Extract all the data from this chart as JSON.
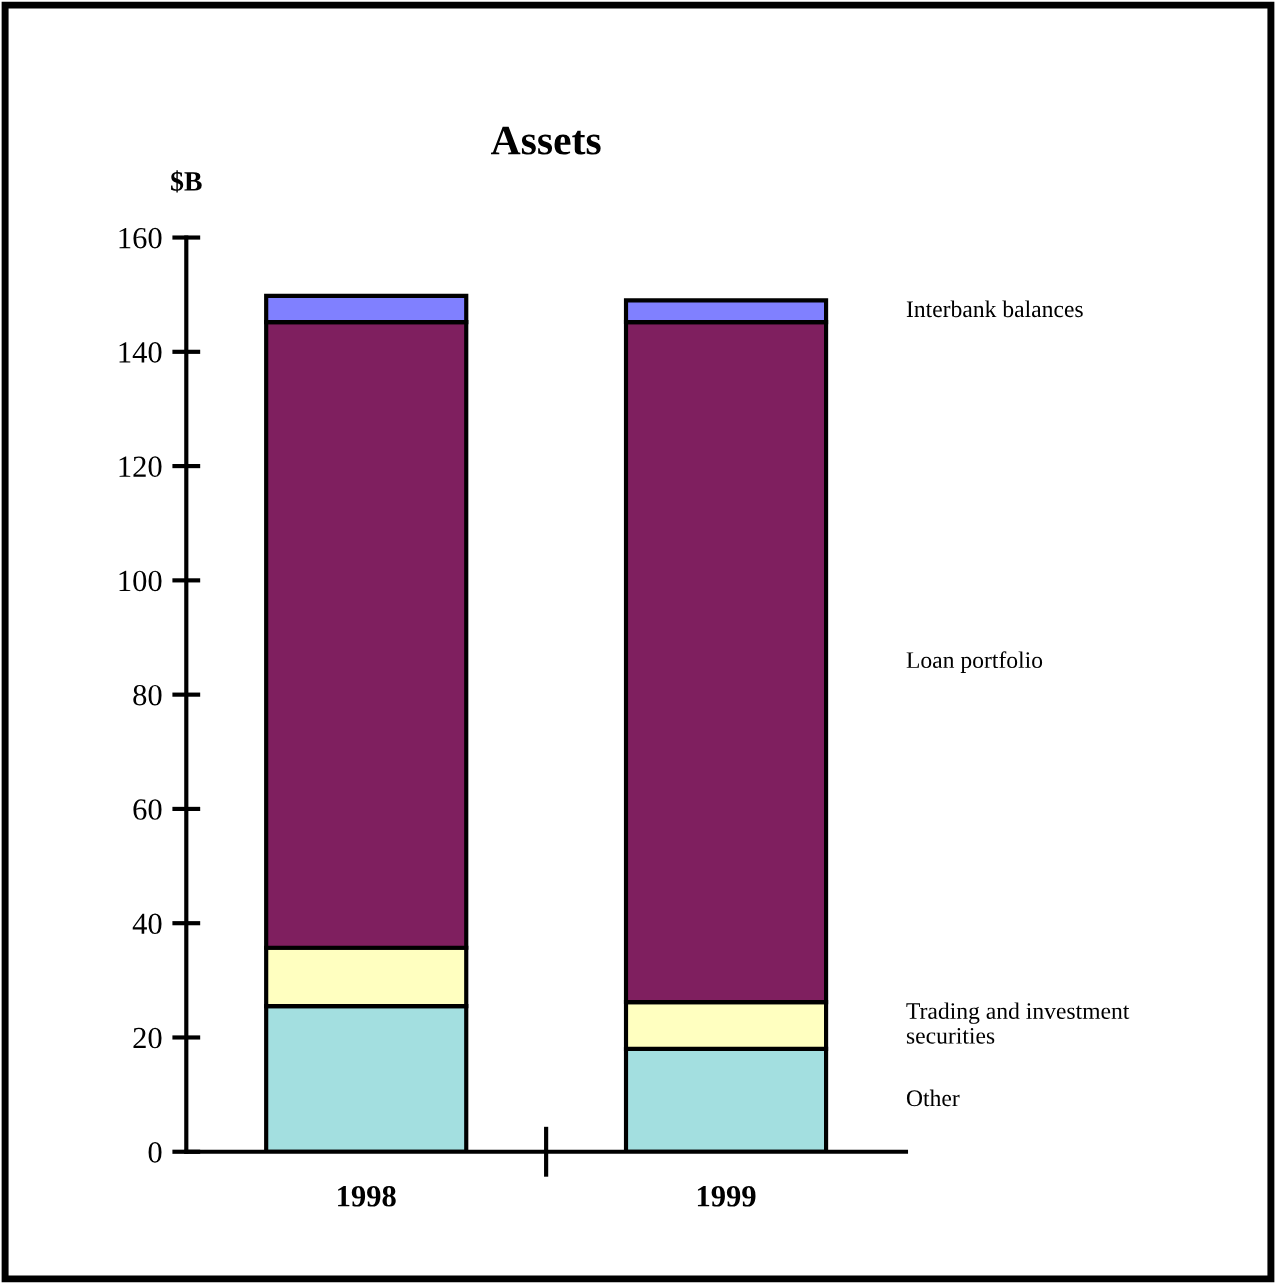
{
  "chart_data": {
    "type": "bar",
    "title": "Assets",
    "ylabel": "$B",
    "stacked": true,
    "categories": [
      "1998",
      "1999"
    ],
    "series": [
      {
        "name": "Other",
        "color": "#a3dfe0",
        "values": [
          25.5,
          18
        ]
      },
      {
        "name": "Trading and investment\nsecurities",
        "color": "#ffffc0",
        "values": [
          10.2,
          8.2
        ]
      },
      {
        "name": "Loan portfolio",
        "color": "#7f1f5f",
        "values": [
          109.5,
          119
        ]
      },
      {
        "name": "Interbank balances",
        "color": "#8080ff",
        "values": [
          4.6,
          3.8
        ]
      }
    ],
    "ylim": [
      0,
      160
    ],
    "yticks": [
      0,
      20,
      40,
      60,
      80,
      100,
      120,
      140,
      160
    ],
    "grid": false,
    "legend": false
  }
}
